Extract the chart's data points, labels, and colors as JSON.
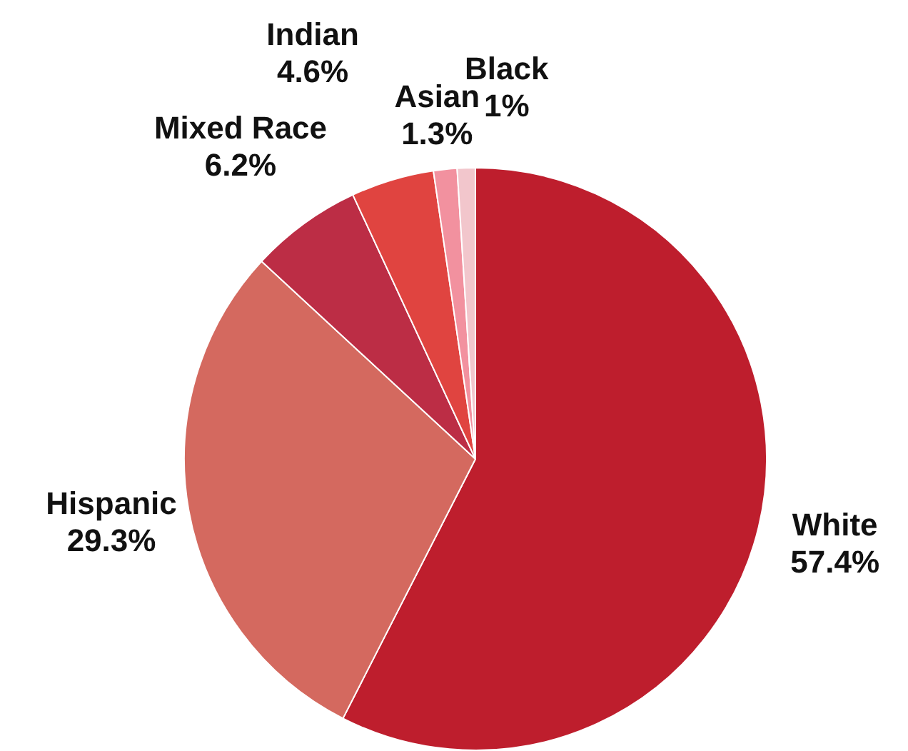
{
  "chart_data": {
    "type": "pie",
    "categories": [
      "White",
      "Hispanic",
      "Mixed Race",
      "Indian",
      "Asian",
      "Black"
    ],
    "values": [
      57.4,
      29.3,
      6.2,
      4.6,
      1.3,
      1
    ],
    "value_labels": [
      "57.4%",
      "29.3%",
      "6.2%",
      "4.6%",
      "1.3%",
      "1%"
    ],
    "colors": [
      "#be1e2d",
      "#d4695f",
      "#bc2d45",
      "#e04440",
      "#f2919f",
      "#f2c6cc"
    ],
    "legend": false
  }
}
